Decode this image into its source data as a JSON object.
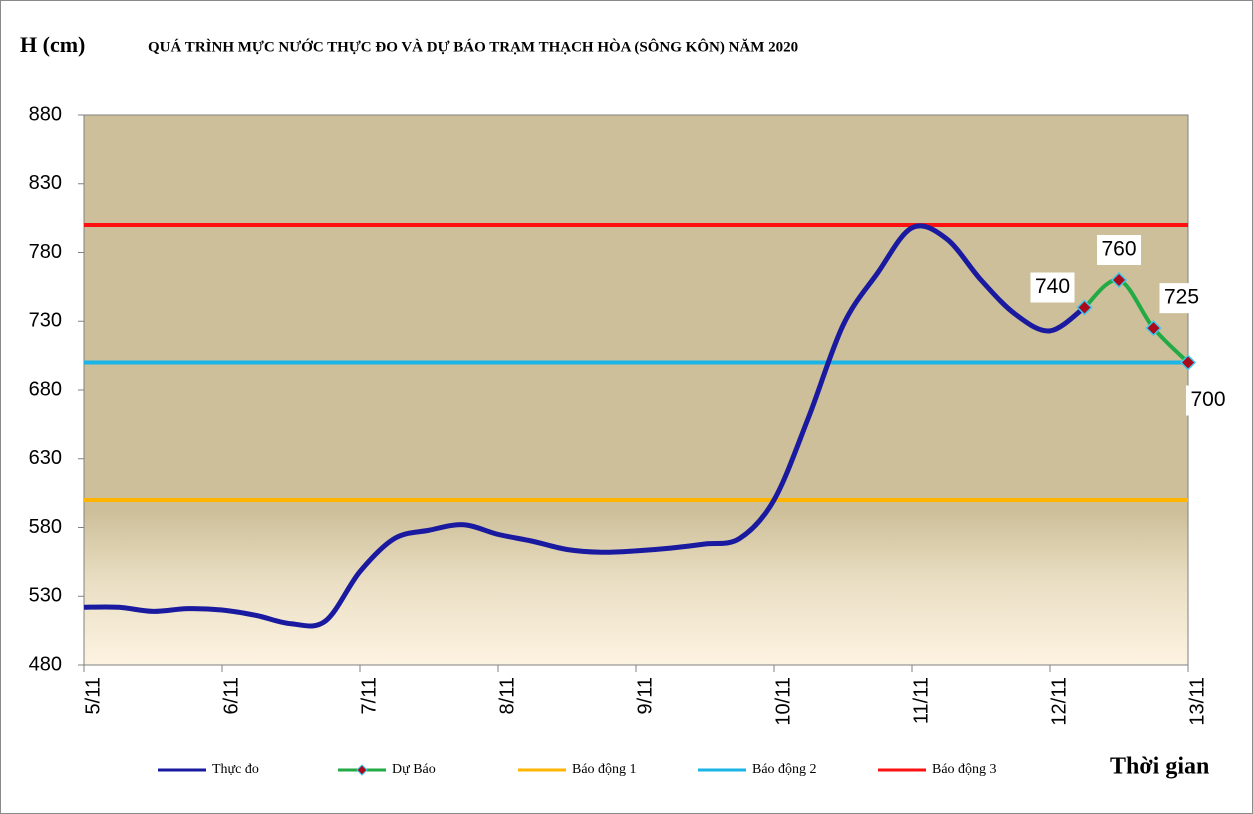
{
  "chart_data": {
    "type": "line",
    "title": "QUÁ TRÌNH MỰC NƯỚC THỰC ĐO VÀ DỰ BÁO TRẠM THẠCH HÒA (SÔNG KÔN) NĂM 2020",
    "y_label": "H (cm)",
    "x_label": "Thời gian",
    "xlim": [
      0,
      8
    ],
    "xticks": [
      {
        "value": 0,
        "label": "5/11"
      },
      {
        "value": 1,
        "label": "6/11"
      },
      {
        "value": 2,
        "label": "7/11"
      },
      {
        "value": 3,
        "label": "8/11"
      },
      {
        "value": 4,
        "label": "9/11"
      },
      {
        "value": 5,
        "label": "10/11"
      },
      {
        "value": 6,
        "label": "11/11"
      },
      {
        "value": 7,
        "label": "12/11"
      },
      {
        "value": 8,
        "label": "13/11"
      }
    ],
    "ylim": [
      480,
      880
    ],
    "yticks": [
      480,
      530,
      580,
      630,
      680,
      730,
      780,
      830,
      880
    ],
    "series": [
      {
        "name": "Thực đo",
        "color": "#1a1aa0",
        "x": [
          0,
          0.25,
          0.5,
          0.75,
          1,
          1.25,
          1.5,
          1.75,
          2,
          2.25,
          2.5,
          2.75,
          3,
          3.25,
          3.5,
          3.75,
          4,
          4.25,
          4.5,
          4.75,
          5,
          5.25,
          5.5,
          5.75,
          6,
          6.25,
          6.5,
          6.75,
          7,
          7.25
        ],
        "values": [
          522,
          522,
          519,
          521,
          520,
          516,
          510,
          512,
          548,
          572,
          578,
          582,
          575,
          570,
          564,
          562,
          563,
          565,
          568,
          572,
          600,
          660,
          727,
          765,
          798,
          790,
          760,
          735,
          723,
          740
        ]
      },
      {
        "name": "Dự Báo",
        "color": "#22aa44",
        "marker_color": "#aa0a1a",
        "x": [
          7.25,
          7.5,
          7.75,
          8
        ],
        "values": [
          740,
          760,
          725,
          700
        ],
        "data_labels": true
      }
    ],
    "hlines": [
      {
        "name": "Báo động 1",
        "color": "#ffb400",
        "value": 600
      },
      {
        "name": "Báo động 2",
        "color": "#1ab4e6",
        "value": 700
      },
      {
        "name": "Báo động 3",
        "color": "#ff1010",
        "value": 800
      }
    ]
  }
}
